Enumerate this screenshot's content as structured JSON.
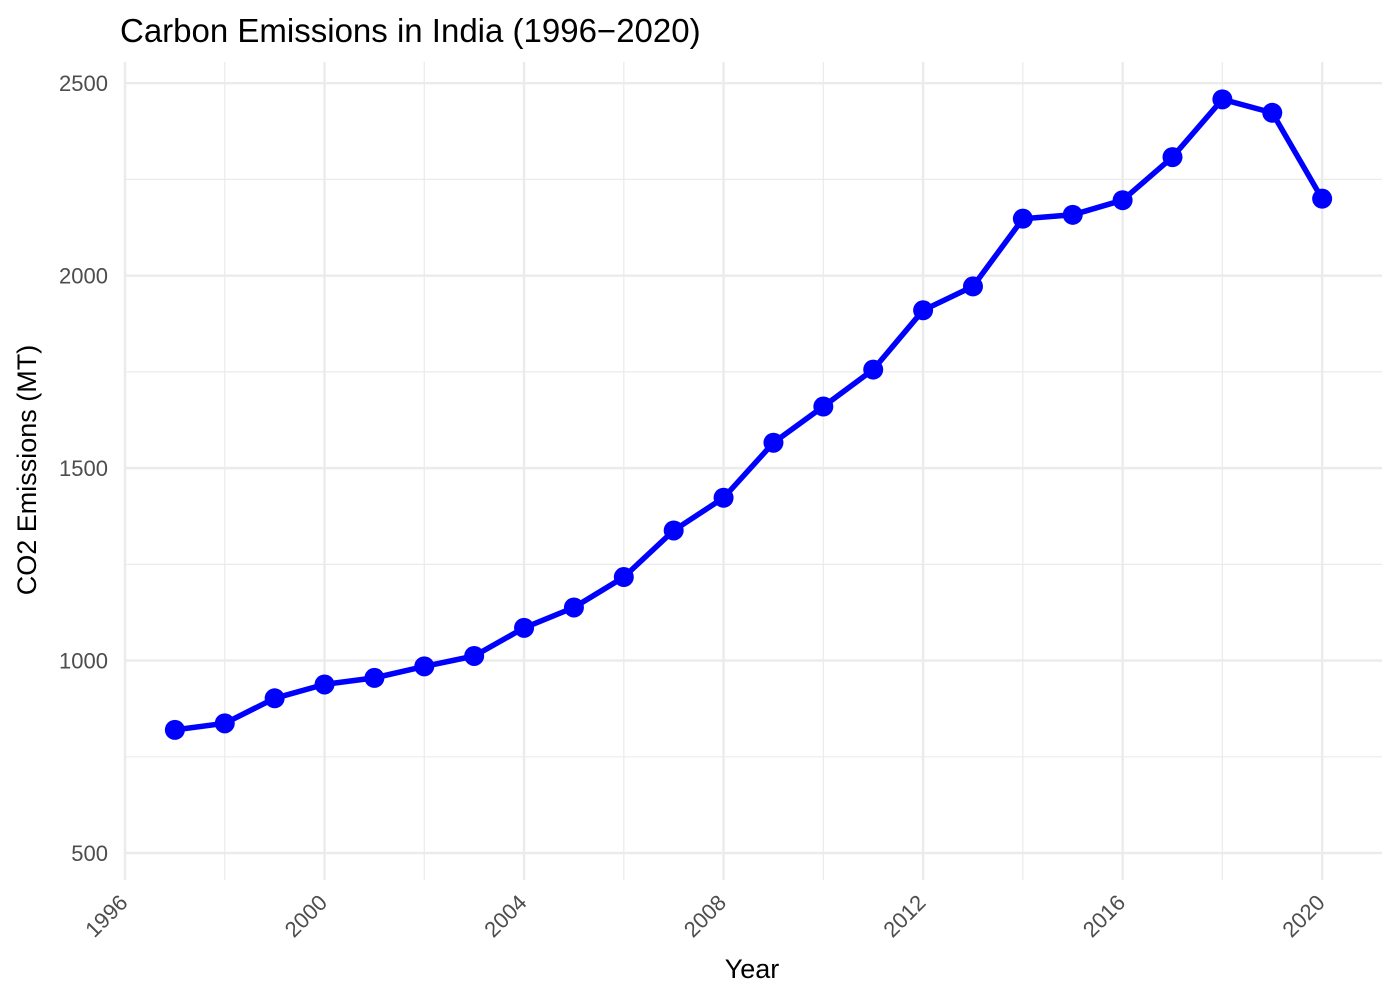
{
  "chart_data": {
    "type": "line",
    "title": "Carbon Emissions in India (1996−2020)",
    "xlabel": "Year",
    "ylabel": "CO2 Emissions (MT)",
    "xlim": [
      1996,
      2021.2
    ],
    "ylim": [
      430,
      2555
    ],
    "x_ticks": [
      1996,
      2000,
      2004,
      2008,
      2012,
      2016,
      2020
    ],
    "y_ticks": [
      500,
      1000,
      1500,
      2000,
      2500
    ],
    "grid": true,
    "legend": "none",
    "line_color": "#0000ff",
    "grid_color": "#ebebeb",
    "x": [
      1997,
      1998,
      1999,
      2000,
      2001,
      2002,
      2003,
      2004,
      2005,
      2006,
      2007,
      2008,
      2009,
      2010,
      2011,
      2012,
      2013,
      2014,
      2015,
      2016,
      2017,
      2018,
      2019,
      2020
    ],
    "y": [
      820,
      837,
      902,
      938,
      955,
      985,
      1012,
      1085,
      1138,
      1217,
      1338,
      1423,
      1566,
      1660,
      1756,
      1910,
      1972,
      2148,
      2158,
      2196,
      2308,
      2458,
      2423,
      2200
    ]
  }
}
